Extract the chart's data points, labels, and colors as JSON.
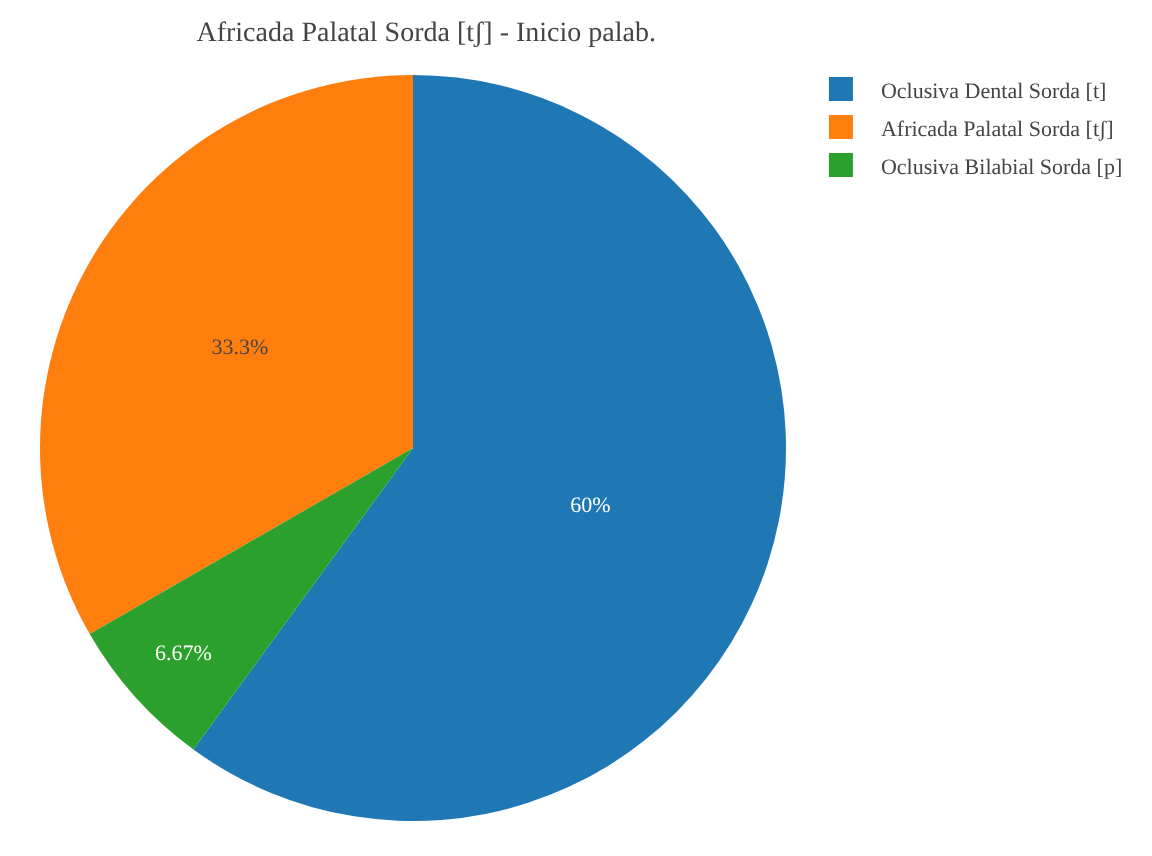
{
  "chart_data": {
    "type": "pie",
    "title": "Africada Palatal Sorda [tʃ] - Inicio palab.",
    "categories": [
      "Oclusiva Dental Sorda [t]",
      "Africada Palatal Sorda [tʃ]",
      "Oclusiva Bilabial Sorda [p]"
    ],
    "values": [
      60,
      33.3,
      6.67
    ],
    "colors": [
      "#1f77b4",
      "#ff7f0e",
      "#2ca02c"
    ],
    "value_labels": [
      "60%",
      "33.3%",
      "6.67%"
    ],
    "legend": "top right"
  }
}
